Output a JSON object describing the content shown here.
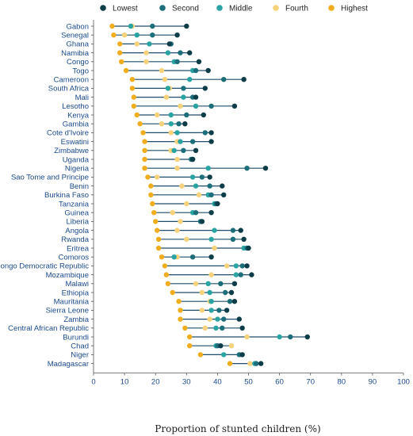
{
  "chart_data": {
    "type": "scatter",
    "xlabel": "Proportion of stunted children (%)",
    "xlim": [
      0,
      100
    ],
    "xticks": [
      0,
      10,
      20,
      30,
      40,
      50,
      60,
      70,
      80,
      90,
      100
    ],
    "legend_position": "top",
    "series": [
      {
        "name": "Lowest",
        "color": "#0e3d4a"
      },
      {
        "name": "Second",
        "color": "#1b6e7a"
      },
      {
        "name": "Middle",
        "color": "#2aa3a3"
      },
      {
        "name": "Fourth",
        "color": "#f6d27a"
      },
      {
        "name": "Highest",
        "color": "#f0ad1e"
      }
    ],
    "categories": [
      "Gabon",
      "Senegal",
      "Ghana",
      "Namibia",
      "Congo",
      "Togo",
      "Cameroon",
      "South Africa",
      "Mali",
      "Lesotho",
      "Kenya",
      "Gambia",
      "Cote d'Ivoire",
      "Eswatini",
      "Zimbabwe",
      "Uganda",
      "Nigeria",
      "Sao Tome and Principe",
      "Benin",
      "Burkina Faso",
      "Tanzania",
      "Guinea",
      "Liberia",
      "Angola",
      "Rwanda",
      "Eritrea",
      "Comoros",
      "Congo Democratic Republic",
      "Mozambique",
      "Malawi",
      "Ethiopia",
      "Mauritania",
      "Sierra Leone",
      "Zambia",
      "Central African Republic",
      "Burundi",
      "Chad",
      "Niger",
      "Madagascar"
    ],
    "rows": [
      {
        "country": "Gabon",
        "values": [
          30,
          19,
          12,
          12.5,
          6
        ]
      },
      {
        "country": "Senegal",
        "values": [
          27,
          19,
          14,
          10,
          6.5
        ]
      },
      {
        "country": "Ghana",
        "values": [
          24.5,
          25,
          18,
          14,
          8.5
        ]
      },
      {
        "country": "Namibia",
        "values": [
          31,
          28,
          24,
          17,
          8.5
        ]
      },
      {
        "country": "Congo",
        "values": [
          34,
          27,
          26,
          17,
          9
        ]
      },
      {
        "country": "Togo",
        "values": [
          37,
          33,
          32,
          22,
          10.5
        ]
      },
      {
        "country": "Cameroon",
        "values": [
          48.5,
          42,
          31,
          23,
          12.5
        ]
      },
      {
        "country": "South Africa",
        "values": [
          36,
          29,
          24,
          24.5,
          12.5
        ]
      },
      {
        "country": "Mali",
        "values": [
          33,
          32,
          29,
          23.5,
          13
        ]
      },
      {
        "country": "Lesotho",
        "values": [
          45.5,
          38,
          33,
          28,
          13
        ]
      },
      {
        "country": "Kenya",
        "values": [
          35.5,
          30,
          25,
          20.5,
          14
        ]
      },
      {
        "country": "Gambia",
        "values": [
          29.5,
          27.5,
          25,
          22,
          15
        ]
      },
      {
        "country": "Cote d'Ivoire",
        "values": [
          38,
          36,
          27,
          25,
          16
        ]
      },
      {
        "country": "Eswatini",
        "values": [
          38,
          32,
          28,
          27,
          16.5
        ]
      },
      {
        "country": "Zimbabwe",
        "values": [
          33,
          29,
          26,
          25,
          16.5
        ]
      },
      {
        "country": "Uganda",
        "values": [
          32,
          31.5,
          32,
          27,
          16.5
        ]
      },
      {
        "country": "Nigeria",
        "values": [
          55.5,
          49.5,
          37,
          27,
          16.5
        ]
      },
      {
        "country": "Sao Tome and Principe",
        "values": [
          37.5,
          35,
          32,
          20.5,
          17.5
        ]
      },
      {
        "country": "Benin",
        "values": [
          41.5,
          37.5,
          33,
          28.5,
          18.5
        ]
      },
      {
        "country": "Burkina Faso",
        "values": [
          42,
          38,
          37,
          34,
          18.5
        ]
      },
      {
        "country": "Tanzania",
        "values": [
          40,
          39.5,
          39,
          30,
          19
        ]
      },
      {
        "country": "Guinea",
        "values": [
          38,
          33,
          32,
          25.5,
          19.5
        ]
      },
      {
        "country": "Liberia",
        "values": [
          35,
          34.5,
          35,
          28,
          20
        ]
      },
      {
        "country": "Angola",
        "values": [
          47.5,
          45,
          39,
          27,
          20.5
        ]
      },
      {
        "country": "Rwanda",
        "values": [
          48.5,
          45,
          38,
          30,
          21
        ]
      },
      {
        "country": "Eritrea",
        "values": [
          50,
          49.5,
          48.5,
          39,
          21
        ]
      },
      {
        "country": "Comoros",
        "values": [
          38,
          32,
          26,
          27,
          22
        ]
      },
      {
        "country": "Congo Democratic Republic",
        "values": [
          49.5,
          48,
          46,
          43,
          23
        ]
      },
      {
        "country": "Mozambique",
        "values": [
          51,
          47.5,
          46,
          38,
          23.5
        ]
      },
      {
        "country": "Malawi",
        "values": [
          45.5,
          41,
          37,
          33,
          24
        ]
      },
      {
        "country": "Ethiopia",
        "values": [
          44.5,
          42.5,
          37.5,
          35,
          25.5
        ]
      },
      {
        "country": "Mauritania",
        "values": [
          45.5,
          44,
          38,
          37.5,
          27.5
        ]
      },
      {
        "country": "Sierra Leone",
        "values": [
          43,
          40.5,
          38,
          35,
          28
        ]
      },
      {
        "country": "Zambia",
        "values": [
          47,
          42,
          40,
          37.5,
          28
        ]
      },
      {
        "country": "Central African Republic",
        "values": [
          48,
          41.5,
          39.5,
          36,
          29.5
        ]
      },
      {
        "country": "Burundi",
        "values": [
          69,
          63.5,
          60,
          49.5,
          31
        ]
      },
      {
        "country": "Chad",
        "values": [
          41,
          40,
          39.5,
          44.5,
          31
        ]
      },
      {
        "country": "Niger",
        "values": [
          48,
          47,
          42,
          47.5,
          34.5
        ]
      },
      {
        "country": "Madagascar",
        "values": [
          54,
          52.5,
          52,
          50.5,
          44
        ]
      }
    ]
  }
}
